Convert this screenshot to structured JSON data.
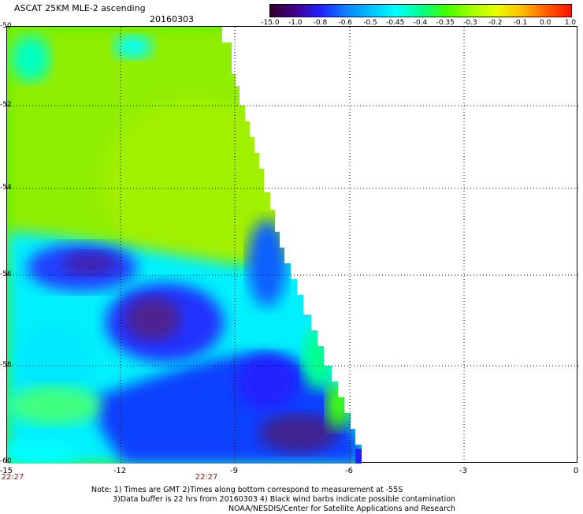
{
  "header": {
    "title": "ASCAT 25KM MLE-2 ascending",
    "date": "20160303"
  },
  "colorbar": {
    "labels": [
      "-15.0",
      "-1.0",
      "-0.8",
      "-0.6",
      "-0.5",
      "-0.45",
      "-0.4",
      "-0.35",
      "-0.3",
      "-0.2",
      "-0.1",
      "0.0",
      "1.0"
    ],
    "colors": [
      "#300030",
      "#440088",
      "#2020ff",
      "#1080ff",
      "#00c0ff",
      "#00ffff",
      "#00ff90",
      "#40ff00",
      "#a0ff00",
      "#e8ff00",
      "#ffc000",
      "#ff6000",
      "#ff1000"
    ]
  },
  "axes": {
    "y_ticks": [
      "-50",
      "-52",
      "-54",
      "-56",
      "-58",
      "-60"
    ],
    "x_ticks": [
      "-15",
      "-12",
      "-9",
      "-6",
      "-3",
      "0"
    ]
  },
  "times": {
    "left": "22:27",
    "middle": "22:27"
  },
  "notes": {
    "line1": "Note: 1) Times are GMT 2)Times along bottom correspond to measurement at -55S",
    "line2": "3)Data buffer is 22 hrs from 20160303 4) Black wind barbs indicate possible contamination",
    "line3": "NOAA/NESDIS/Center for Satellite Applications and Research"
  }
}
